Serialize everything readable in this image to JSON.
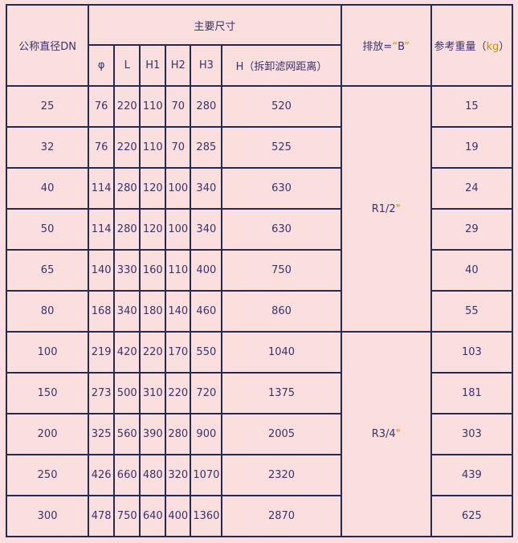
{
  "table": {
    "headers": {
      "dn": "公称直径DN",
      "main_dims_group": "主要尺寸",
      "sub": {
        "phi": "φ",
        "l": "L",
        "h1": "H1",
        "h2": "H2",
        "h3": "H3",
        "h": "H（拆卸滤网距离）"
      },
      "drain": {
        "prefix": "排放=",
        "open_quote": "“",
        "letter": "B",
        "close_quote": "”"
      },
      "weight": {
        "prefix": "参考重量（",
        "unit": "kg",
        "suffix": "）"
      }
    },
    "drain_groups": [
      {
        "value": "R1/2",
        "quote": "\"",
        "rows_covered": "25–80"
      },
      {
        "value": "R3/4",
        "quote": "\"",
        "rows_covered": "100–300"
      }
    ],
    "rows": [
      {
        "dn": "25",
        "phi": "76",
        "l": "220",
        "h1": "110",
        "h2": "70",
        "h3": "280",
        "h": "520",
        "weight": "15"
      },
      {
        "dn": "32",
        "phi": "76",
        "l": "220",
        "h1": "110",
        "h2": "70",
        "h3": "285",
        "h": "525",
        "weight": "19"
      },
      {
        "dn": "40",
        "phi": "114",
        "l": "280",
        "h1": "120",
        "h2": "100",
        "h3": "340",
        "h": "630",
        "weight": "24"
      },
      {
        "dn": "50",
        "phi": "114",
        "l": "280",
        "h1": "120",
        "h2": "100",
        "h3": "340",
        "h": "630",
        "weight": "29"
      },
      {
        "dn": "65",
        "phi": "140",
        "l": "330",
        "h1": "160",
        "h2": "110",
        "h3": "400",
        "h": "750",
        "weight": "40"
      },
      {
        "dn": "80",
        "phi": "168",
        "l": "340",
        "h1": "180",
        "h2": "140",
        "h3": "460",
        "h": "860",
        "weight": "55"
      },
      {
        "dn": "100",
        "phi": "219",
        "l": "420",
        "h1": "220",
        "h2": "170",
        "h3": "550",
        "h": "1040",
        "weight": "103"
      },
      {
        "dn": "150",
        "phi": "273",
        "l": "500",
        "h1": "310",
        "h2": "220",
        "h3": "720",
        "h": "1375",
        "weight": "181"
      },
      {
        "dn": "200",
        "phi": "325",
        "l": "560",
        "h1": "390",
        "h2": "280",
        "h3": "900",
        "h": "2005",
        "weight": "303"
      },
      {
        "dn": "250",
        "phi": "426",
        "l": "660",
        "h1": "480",
        "h2": "320",
        "h3": "1070",
        "h": "2320",
        "weight": "439"
      },
      {
        "dn": "300",
        "phi": "478",
        "l": "750",
        "h1": "640",
        "h2": "400",
        "h3": "1360",
        "h": "2870",
        "weight": "625"
      }
    ]
  },
  "colors": {
    "background": "#fbdede",
    "border": "#232b52",
    "text": "#38336b",
    "accent": "#c79200"
  }
}
